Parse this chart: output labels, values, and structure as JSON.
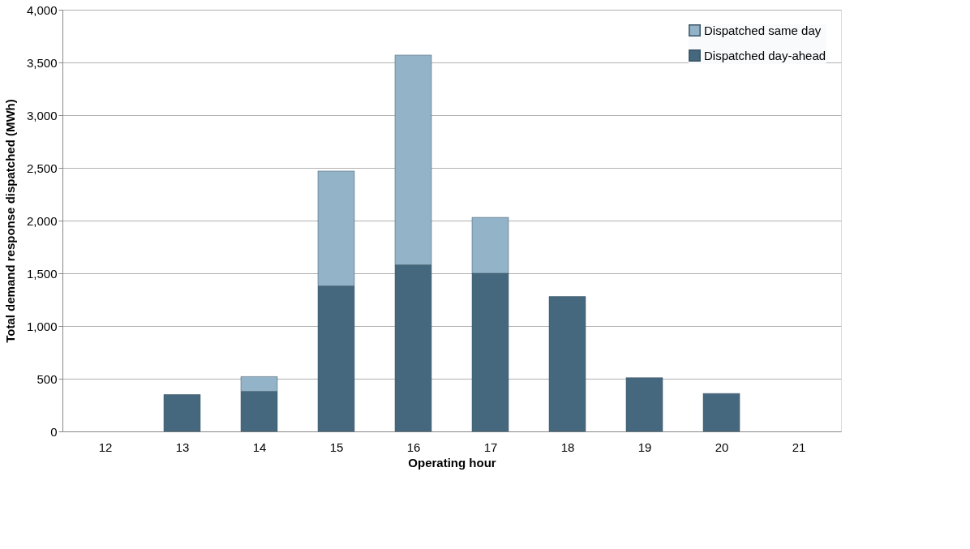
{
  "chart_data": {
    "type": "bar",
    "stacked": true,
    "xlabel": "Operating hour",
    "ylabel": "Total demand response dispatched  (MWh)",
    "categories": [
      "12",
      "13",
      "14",
      "15",
      "16",
      "17",
      "18",
      "19",
      "20",
      "21"
    ],
    "series": [
      {
        "name": "Dispatched day-ahead",
        "color": "#46687e",
        "values": [
          null,
          350,
          380,
          1380,
          1580,
          1500,
          1280,
          510,
          360,
          null
        ]
      },
      {
        "name": "Dispatched same day",
        "color": "#93b3c8",
        "values": [
          null,
          null,
          140,
          1090,
          1990,
          530,
          null,
          null,
          null,
          null
        ]
      }
    ],
    "ylim": [
      0,
      4000
    ],
    "yticks": [
      0,
      500,
      {
        "value": 1000,
        "label": "1,000"
      },
      {
        "value": 1500,
        "label": "1,500"
      },
      {
        "value": 2000,
        "label": "2,000"
      },
      {
        "value": 2500,
        "label": "2,500"
      },
      {
        "value": 3000,
        "label": "3,000"
      },
      {
        "value": 3500,
        "label": "3,500"
      },
      {
        "value": 4000,
        "label": "4,000"
      }
    ],
    "grid": "y",
    "legend": "top right"
  }
}
